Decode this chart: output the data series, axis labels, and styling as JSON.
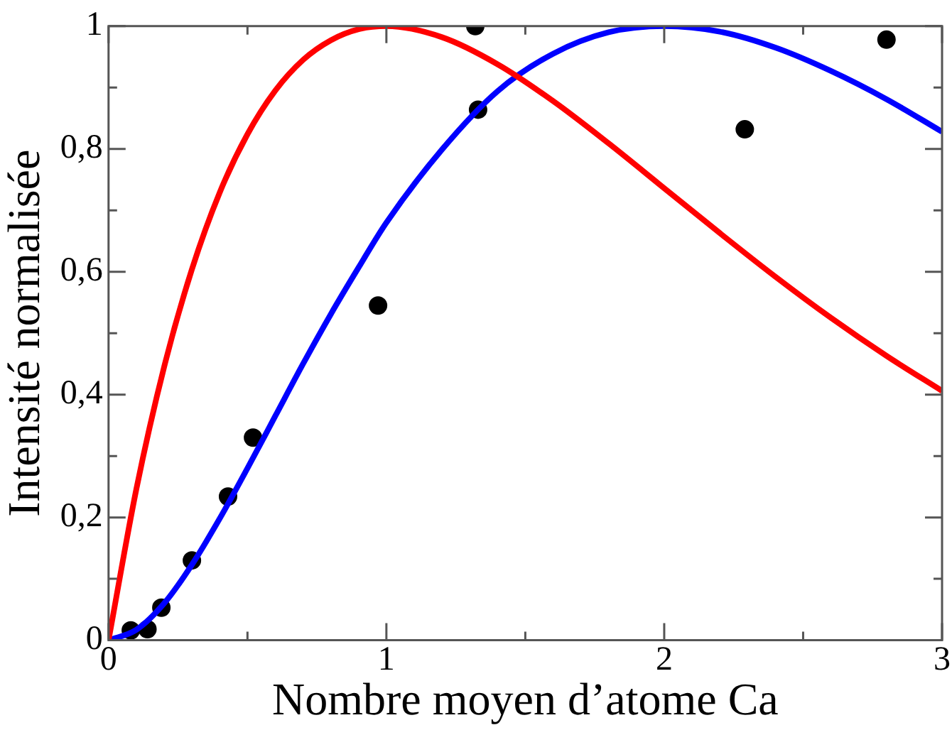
{
  "chart_data": {
    "type": "line",
    "xlabel": "Nombre moyen d’atome Ca",
    "ylabel": "Intensité normalisée",
    "xlim": [
      0,
      3
    ],
    "ylim": [
      0,
      1
    ],
    "xticks": [
      0,
      {
        "value": 0.5,
        "label": null
      },
      1,
      {
        "value": 1.5,
        "label": null
      },
      2,
      {
        "value": 2.5,
        "label": null
      },
      3
    ],
    "yticks": [
      {
        "value": 0,
        "label": "0"
      },
      {
        "value": 0.1,
        "label": null
      },
      {
        "value": 0.2,
        "label": "0,2"
      },
      {
        "value": 0.3,
        "label": null
      },
      {
        "value": 0.4,
        "label": "0,4"
      },
      {
        "value": 0.5,
        "label": null
      },
      {
        "value": 0.6,
        "label": "0,6"
      },
      {
        "value": 0.7,
        "label": null
      },
      {
        "value": 0.8,
        "label": "0,8"
      },
      {
        "value": 0.9,
        "label": null
      },
      {
        "value": 1,
        "label": "1"
      }
    ],
    "grid": false,
    "legend": false,
    "marker": "none",
    "line_style": "solid",
    "series": [
      {
        "color": "#ff0000",
        "x": [
          0,
          0.1,
          0.2,
          0.3,
          0.4,
          0.5,
          0.6,
          0.7,
          0.8,
          0.9,
          1,
          1.2,
          1.4,
          1.6,
          1.8,
          2,
          2.2,
          2.4,
          2.6,
          2.8,
          3
        ],
        "values": [
          0,
          0.246,
          0.445,
          0.604,
          0.729,
          0.824,
          0.895,
          0.945,
          0.977,
          0.995,
          1,
          0.982,
          0.938,
          0.878,
          0.809,
          0.736,
          0.663,
          0.592,
          0.525,
          0.463,
          0.406
        ]
      },
      {
        "color": "#0000ff",
        "x": [
          0,
          0.1,
          0.2,
          0.3,
          0.4,
          0.5,
          0.6,
          0.7,
          0.8,
          0.9,
          1,
          1.2,
          1.4,
          1.6,
          1.8,
          2,
          2.2,
          2.4,
          2.6,
          2.8,
          3
        ],
        "values": [
          0,
          0.017,
          0.06,
          0.123,
          0.198,
          0.28,
          0.365,
          0.45,
          0.531,
          0.607,
          0.68,
          0.799,
          0.894,
          0.955,
          0.99,
          1,
          0.991,
          0.965,
          0.927,
          0.881,
          0.828
        ]
      },
      {
        "type": "scatter",
        "marker": "circle",
        "color": "#000000",
        "x": [
          0.08,
          0.14,
          0.19,
          0.3,
          0.43,
          0.52,
          0.97,
          1.32,
          1.33,
          2.29,
          2.8
        ],
        "values": [
          0.016,
          0.018,
          0.053,
          0.13,
          0.234,
          0.33,
          0.545,
          1.0,
          0.864,
          0.832,
          0.978
        ]
      }
    ]
  }
}
